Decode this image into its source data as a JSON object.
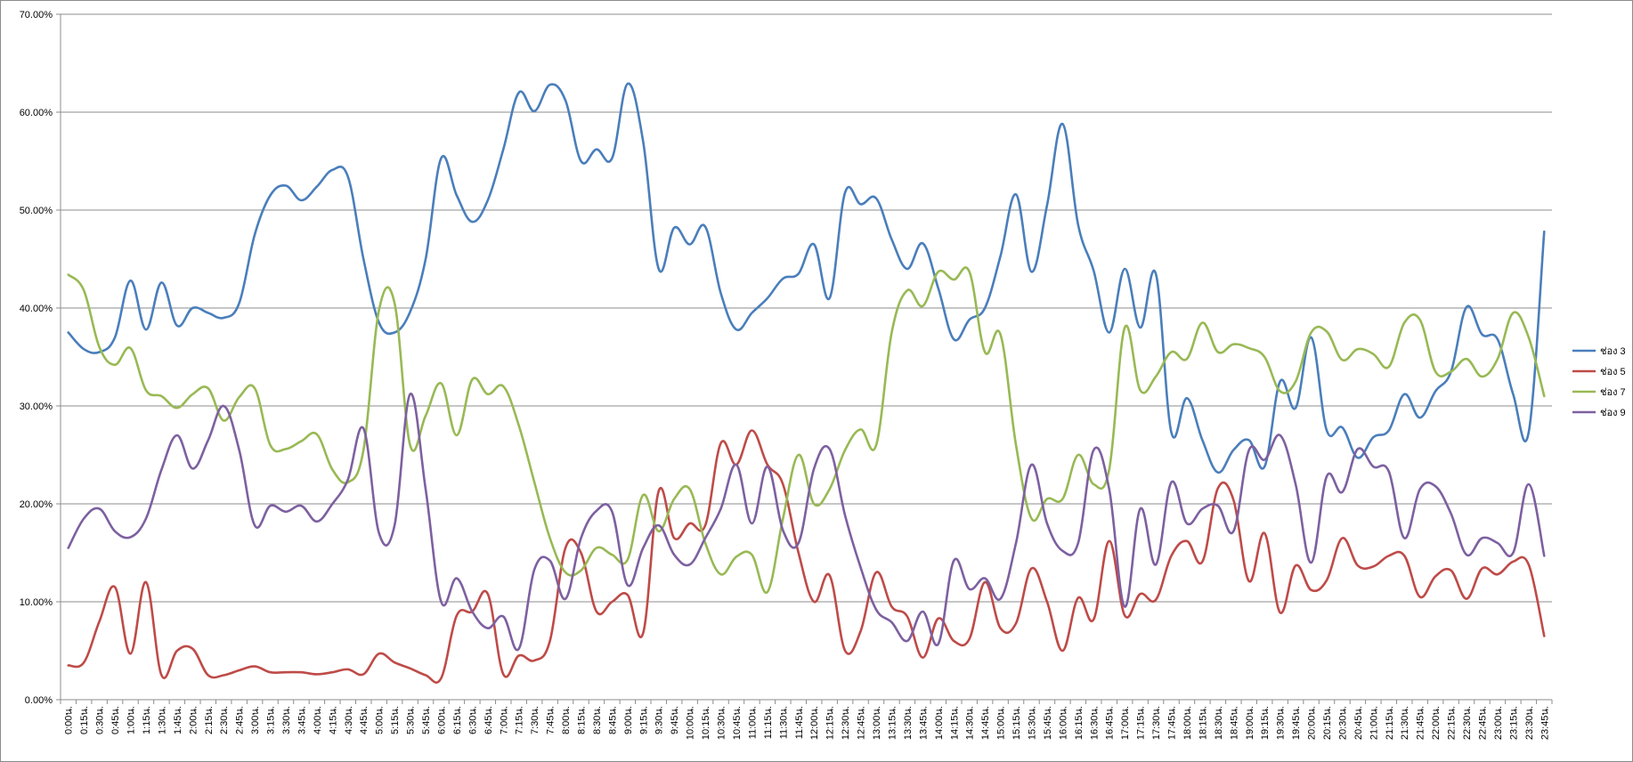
{
  "chart_data": {
    "type": "line",
    "title": "",
    "xlabel": "",
    "ylabel": "",
    "ylim": [
      0,
      70
    ],
    "yticks": [
      "0.00%",
      "10.00%",
      "20.00%",
      "30.00%",
      "40.00%",
      "50.00%",
      "60.00%",
      "70.00%"
    ],
    "grid": true,
    "legend_position": "right",
    "x": [
      "0:00น.",
      "0:15น.",
      "0:30น.",
      "0:45น.",
      "1:00น.",
      "1:15น.",
      "1:30น.",
      "1:45น.",
      "2:00น.",
      "2:15น.",
      "2:30น.",
      "2:45น.",
      "3:00น.",
      "3:15น.",
      "3:30น.",
      "3:45น.",
      "4:00น.",
      "4:15น.",
      "4:30น.",
      "4:45น.",
      "5:00น.",
      "5:15น.",
      "5:30น.",
      "5:45น.",
      "6:00น.",
      "6:15น.",
      "6:30น.",
      "6:45น.",
      "7:00น.",
      "7:15น.",
      "7:30น.",
      "7:45น.",
      "8:00น.",
      "8:15น.",
      "8:30น.",
      "8:45น.",
      "9:00น.",
      "9:15น.",
      "9:30น.",
      "9:45น.",
      "10:00น.",
      "10:15น.",
      "10:30น.",
      "10:45น.",
      "11:00น.",
      "11:15น.",
      "11:30น.",
      "11:45น.",
      "12:00น.",
      "12:15น.",
      "12:30น.",
      "12:45น.",
      "13:00น.",
      "13:15น.",
      "13:30น.",
      "13:45น.",
      "14:00น.",
      "14:15น.",
      "14:30น.",
      "14:45น.",
      "15:00น.",
      "15:15น.",
      "15:30น.",
      "15:45น.",
      "16:00น.",
      "16:15น.",
      "16:30น.",
      "16:45น.",
      "17:00น.",
      "17:15น.",
      "17:30น.",
      "17:45น.",
      "18:00น.",
      "18:15น.",
      "18:30น.",
      "18:45น.",
      "19:00น.",
      "19:15น.",
      "19:30น.",
      "19:45น.",
      "20:00น.",
      "20:15น.",
      "20:30น.",
      "20:45น.",
      "21:00น.",
      "21:15น.",
      "21:30น.",
      "21:45น.",
      "22:00น.",
      "22:15น.",
      "22:30น.",
      "22:45น.",
      "23:00น.",
      "23:15น.",
      "23:30น.",
      "23:45น."
    ],
    "series": [
      {
        "name": "ช่อง 3",
        "color": "#4a7ebb",
        "values": [
          37.5,
          35.8,
          35.5,
          37.0,
          42.8,
          37.8,
          42.6,
          38.2,
          40.0,
          39.5,
          39.0,
          40.5,
          47.5,
          51.5,
          52.5,
          51.0,
          52.4,
          54.1,
          53.4,
          45.0,
          38.5,
          37.5,
          39.6,
          45.0,
          55.3,
          51.5,
          48.8,
          51.0,
          56.2,
          62.0,
          60.1,
          62.8,
          61.2,
          55.0,
          56.2,
          55.3,
          62.9,
          57.0,
          44.0,
          48.2,
          46.5,
          48.3,
          41.5,
          37.8,
          39.5,
          41.0,
          43.0,
          43.5,
          46.5,
          41.0,
          51.8,
          50.6,
          51.2,
          47.0,
          44.0,
          46.6,
          42.0,
          36.8,
          38.8,
          40.0,
          45.3,
          51.6,
          43.7,
          50.5,
          58.8,
          48.5,
          43.8,
          37.5,
          44.0,
          38.0,
          43.5,
          27.3,
          30.8,
          26.5,
          23.2,
          25.5,
          26.5,
          23.8,
          32.5,
          29.8,
          37.0,
          27.5,
          27.8,
          24.7,
          26.8,
          27.5,
          31.2,
          28.8,
          31.5,
          33.5,
          40.1,
          37.3,
          36.8,
          31.2,
          27.3,
          47.8
        ]
      },
      {
        "name": "ช่อง 5",
        "color": "#be4b48",
        "values": [
          3.5,
          3.8,
          8.0,
          11.5,
          4.7,
          12.0,
          2.5,
          5.0,
          5.2,
          2.5,
          2.5,
          3.0,
          3.4,
          2.8,
          2.8,
          2.8,
          2.6,
          2.8,
          3.1,
          2.6,
          4.7,
          3.8,
          3.2,
          2.5,
          2.2,
          8.6,
          9.0,
          10.8,
          2.6,
          4.5,
          4.0,
          6.0,
          15.5,
          15.0,
          9.0,
          10.0,
          10.7,
          6.8,
          21.3,
          16.5,
          18.0,
          17.8,
          26.2,
          24.0,
          27.5,
          24.0,
          22.0,
          15.0,
          10.0,
          12.7,
          5.0,
          7.0,
          13.0,
          9.5,
          8.5,
          4.3,
          8.3,
          6.0,
          6.2,
          12.0,
          7.3,
          7.8,
          13.4,
          10.0,
          5.0,
          10.4,
          8.2,
          16.2,
          8.6,
          10.8,
          10.2,
          14.7,
          16.2,
          14.1,
          21.6,
          20.4,
          12.1,
          17.0,
          8.9,
          13.7,
          11.2,
          12.2,
          16.5,
          13.7,
          13.6,
          14.7,
          14.7,
          10.5,
          12.6,
          13.2,
          10.3,
          13.4,
          12.8,
          14.1,
          13.8,
          6.5
        ]
      },
      {
        "name": "ช่อง 7",
        "color": "#98b954",
        "values": [
          43.4,
          41.8,
          36.0,
          34.2,
          35.9,
          31.6,
          31.0,
          29.8,
          31.2,
          31.8,
          28.5,
          30.9,
          31.8,
          26.0,
          25.6,
          26.4,
          27.1,
          23.5,
          22.2,
          25.5,
          39.8,
          40.5,
          26.0,
          29.0,
          32.3,
          27.0,
          32.7,
          31.2,
          32.0,
          28.0,
          22.2,
          16.5,
          13.0,
          13.2,
          15.5,
          14.8,
          14.3,
          20.9,
          17.2,
          20.5,
          21.5,
          16.0,
          12.8,
          14.6,
          14.8,
          11.0,
          18.5,
          25.0,
          20.0,
          21.5,
          25.5,
          27.6,
          26.0,
          37.5,
          41.8,
          40.2,
          43.7,
          42.9,
          43.7,
          35.5,
          37.3,
          26.0,
          18.5,
          20.5,
          20.5,
          25.0,
          22.0,
          23.5,
          38.0,
          31.6,
          33.0,
          35.5,
          34.8,
          38.5,
          35.5,
          36.3,
          35.9,
          35.0,
          31.5,
          32.5,
          37.5,
          37.6,
          34.7,
          35.8,
          35.3,
          34.0,
          38.5,
          38.8,
          33.5,
          33.5,
          34.8,
          33.0,
          34.8,
          39.5,
          37.0,
          31.0
        ]
      },
      {
        "name": "ช่อง 9",
        "color": "#7d60a0",
        "values": [
          15.5,
          18.5,
          19.5,
          17.2,
          16.6,
          18.5,
          23.5,
          27.0,
          23.6,
          26.5,
          30.0,
          25.5,
          17.8,
          19.8,
          19.2,
          19.8,
          18.2,
          20.0,
          22.5,
          27.7,
          17.0,
          17.8,
          31.2,
          21.5,
          10.0,
          12.4,
          9.0,
          7.3,
          8.5,
          5.2,
          13.3,
          14.2,
          10.3,
          16.5,
          19.3,
          19.2,
          11.7,
          15.5,
          17.8,
          14.8,
          13.8,
          16.5,
          19.5,
          24.0,
          18.0,
          23.8,
          17.3,
          16.0,
          23.6,
          25.6,
          18.8,
          13.5,
          9.2,
          7.9,
          6.0,
          9.0,
          5.7,
          14.2,
          11.3,
          12.4,
          10.3,
          16.0,
          24.0,
          18.0,
          15.2,
          16.0,
          25.5,
          21.5,
          9.5,
          19.5,
          13.8,
          22.2,
          18.0,
          19.5,
          19.8,
          17.2,
          25.5,
          24.5,
          27.0,
          22.0,
          14.0,
          22.8,
          21.2,
          25.6,
          23.8,
          23.3,
          16.5,
          21.5,
          21.8,
          19.0,
          14.8,
          16.5,
          16.0,
          15.0,
          22.0,
          14.7
        ]
      }
    ]
  }
}
